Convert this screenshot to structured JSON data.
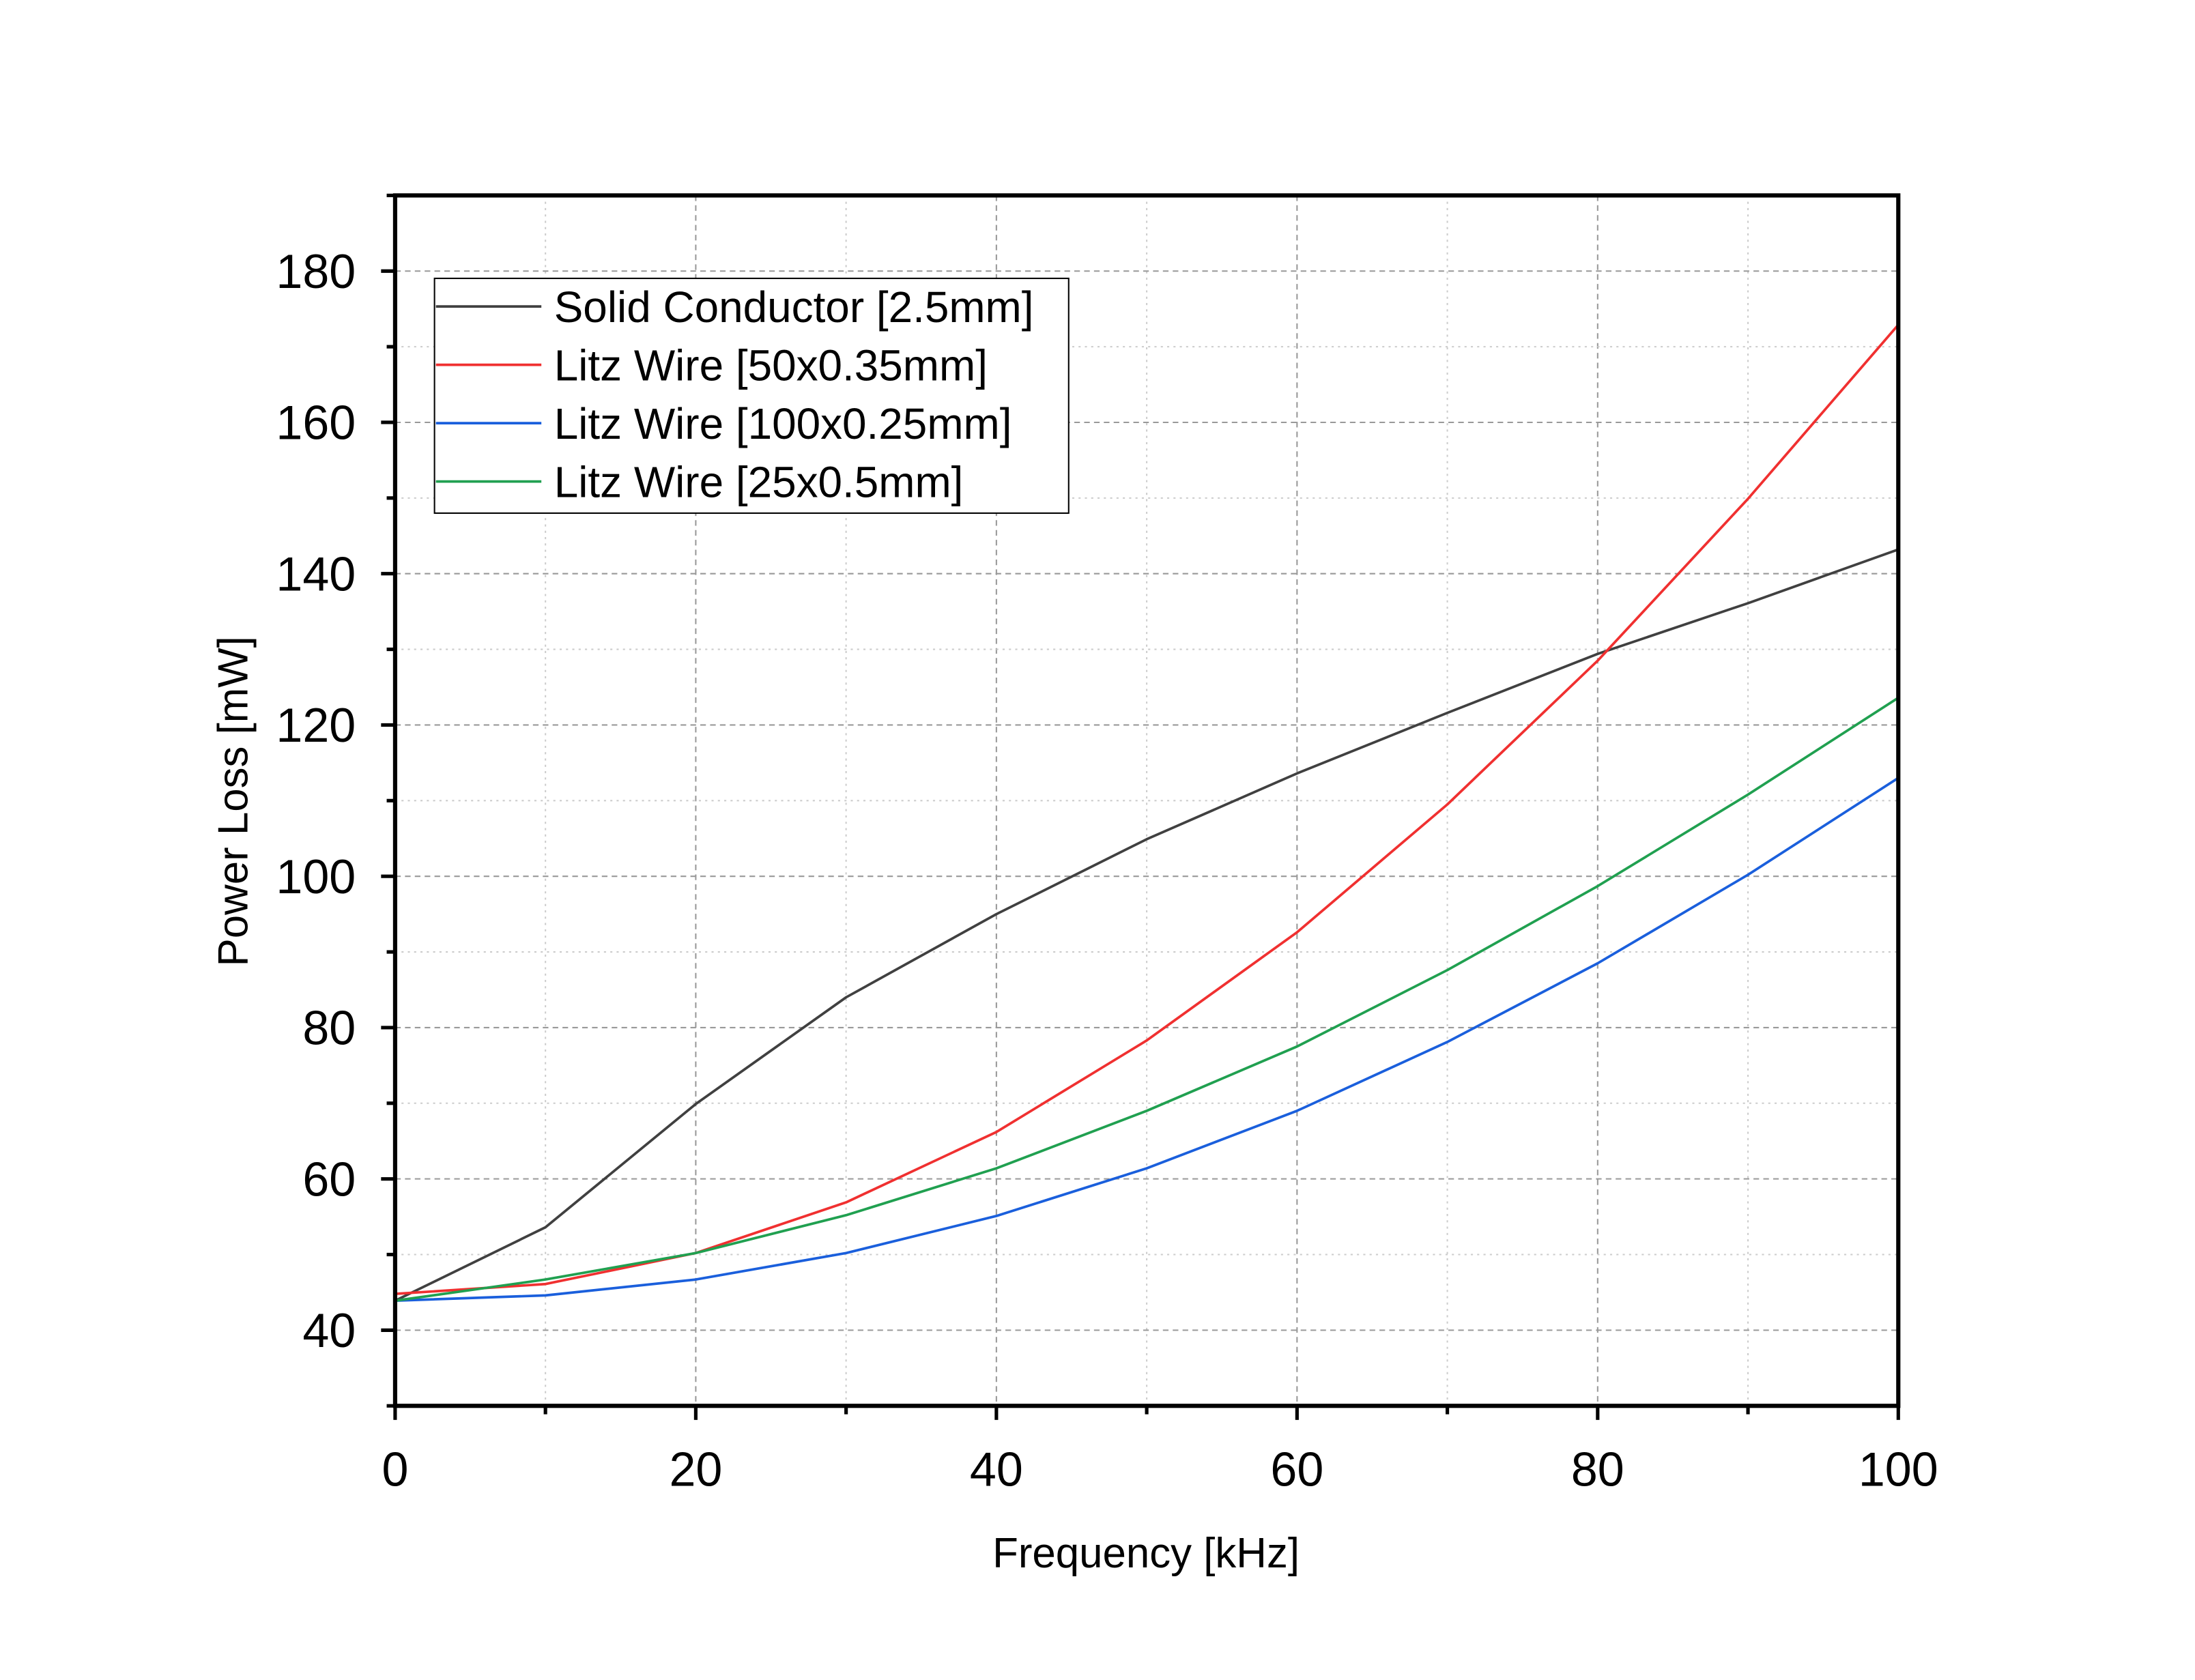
{
  "chart_data": {
    "type": "line",
    "title": "",
    "xlabel": "Frequency [kHz]",
    "ylabel": "Power Loss [mW]",
    "xlim": [
      0,
      100
    ],
    "ylim": [
      30,
      190
    ],
    "xticks": [
      0,
      20,
      40,
      60,
      80,
      100
    ],
    "yticks": [
      40,
      60,
      80,
      100,
      120,
      140,
      160,
      180
    ],
    "xtick_labels": [
      "0",
      "20",
      "40",
      "60",
      "80",
      "100"
    ],
    "ytick_labels": [
      "40",
      "60",
      "80",
      "100",
      "120",
      "140",
      "160",
      "180"
    ],
    "grid": true,
    "legend_position": "top-left",
    "x": [
      0,
      10,
      20,
      30,
      40,
      50,
      60,
      70,
      80,
      90,
      100
    ],
    "series": [
      {
        "name": "Solid Conductor [2.5mm]",
        "color": "#404040",
        "values": [
          43.9,
          53.6,
          69.9,
          84.0,
          95.0,
          104.9,
          113.6,
          121.6,
          129.4,
          136.1,
          143.2
        ]
      },
      {
        "name": "Litz Wire [50x0.35mm]",
        "color": "#f03030",
        "values": [
          44.8,
          46.1,
          50.2,
          56.9,
          66.2,
          78.3,
          92.6,
          109.5,
          128.5,
          149.9,
          172.9
        ]
      },
      {
        "name": "Litz Wire [100x0.25mm]",
        "color": "#1a5fdc",
        "values": [
          43.9,
          44.6,
          46.7,
          50.2,
          55.1,
          61.4,
          69.0,
          78.1,
          88.5,
          100.2,
          113.0
        ]
      },
      {
        "name": "Litz Wire [25x0.5mm]",
        "color": "#20a050",
        "values": [
          43.9,
          46.7,
          50.2,
          55.2,
          61.4,
          69.0,
          77.5,
          87.6,
          98.7,
          110.8,
          123.6
        ]
      }
    ]
  }
}
